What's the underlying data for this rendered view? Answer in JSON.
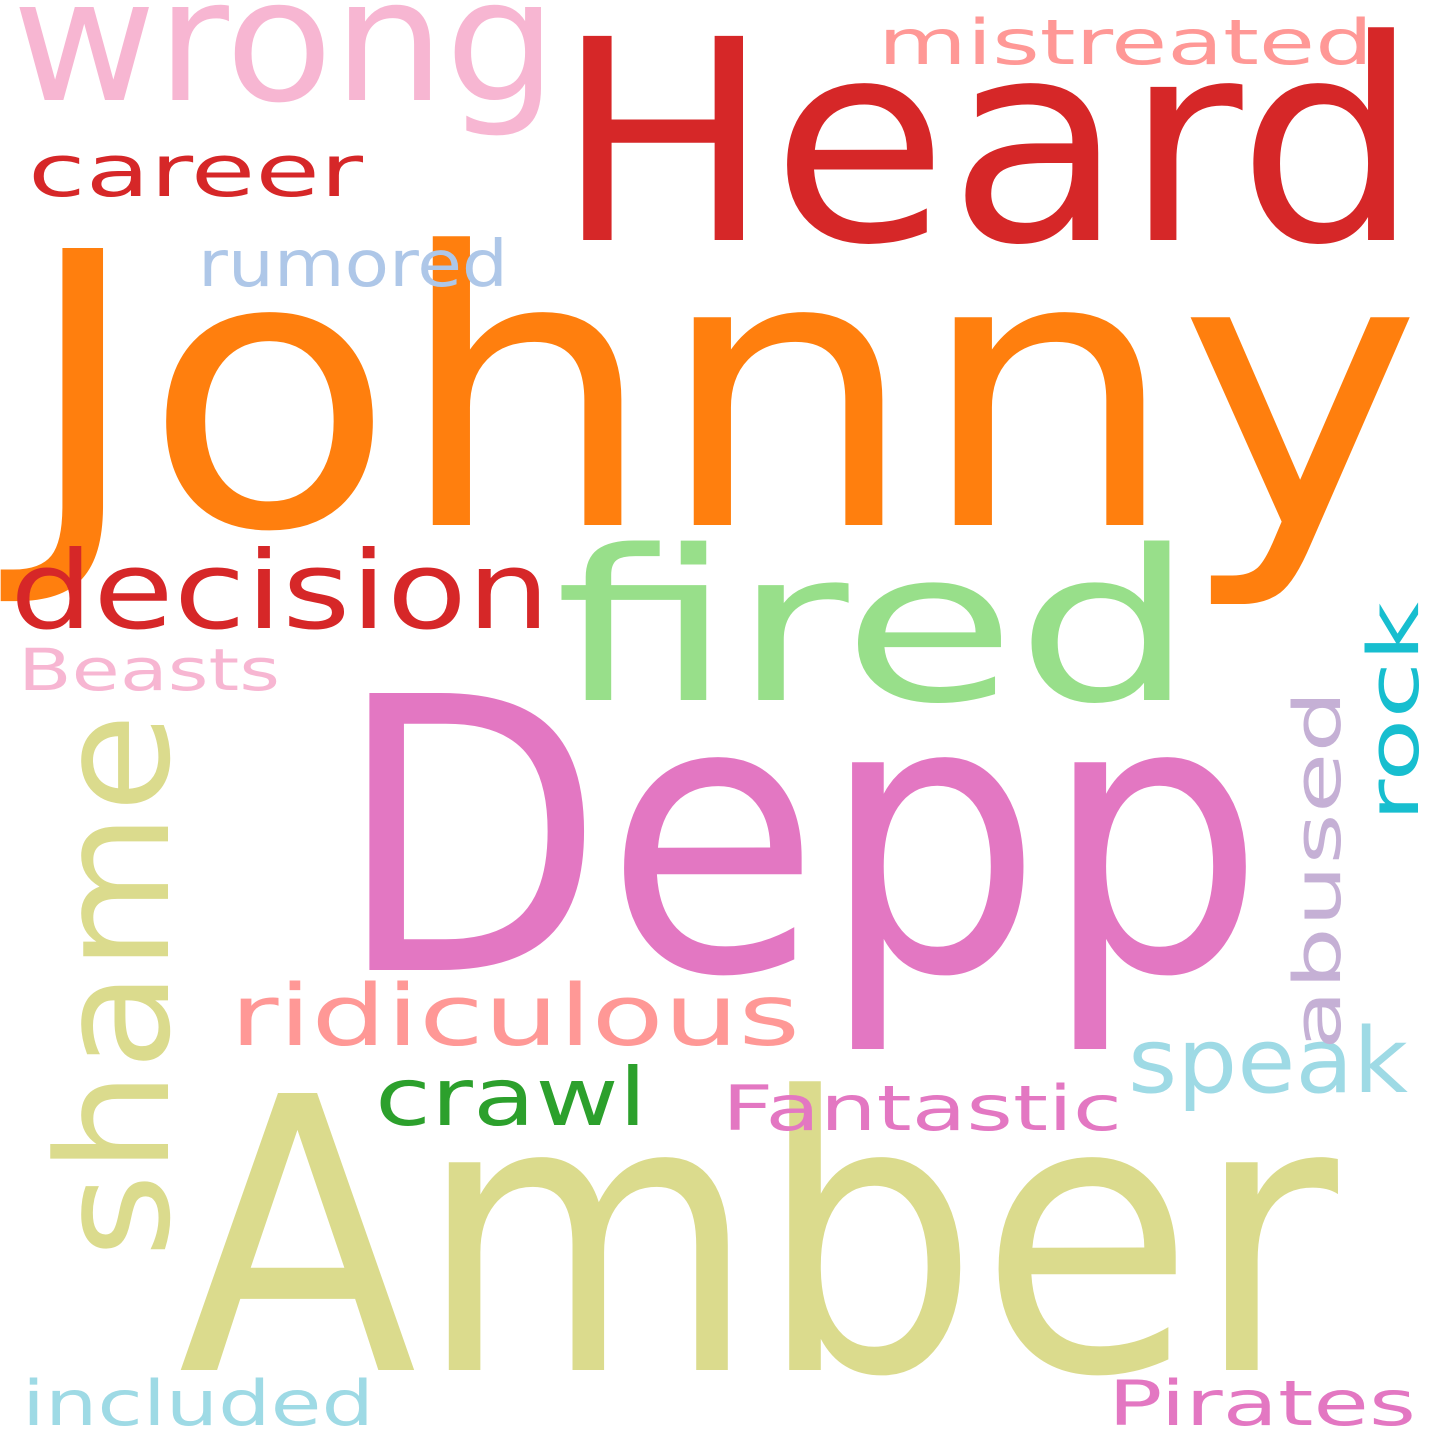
{
  "words": [
    {
      "text": "Johnny",
      "color": "#ff7f0e"
    },
    {
      "text": "Depp",
      "color": "#e377c2"
    },
    {
      "text": "Amber",
      "color": "#dbdb8d"
    },
    {
      "text": "Heard",
      "color": "#d62728"
    },
    {
      "text": "fired",
      "color": "#98df8a"
    },
    {
      "text": "shame",
      "color": "#dbdb8d"
    },
    {
      "text": "wrong",
      "color": "#f7b6d2"
    },
    {
      "text": "decision",
      "color": "#d62728"
    },
    {
      "text": "ridiculous",
      "color": "#ff9896"
    },
    {
      "text": "speak",
      "color": "#9edae5"
    },
    {
      "text": "crawl",
      "color": "#2ca02c"
    },
    {
      "text": "career",
      "color": "#d62728"
    },
    {
      "text": "mistreated",
      "color": "#ff9896"
    },
    {
      "text": "rumored",
      "color": "#aec7e8"
    },
    {
      "text": "Fantastic",
      "color": "#e377c2"
    },
    {
      "text": "abused",
      "color": "#c5b0d5"
    },
    {
      "text": "rock",
      "color": "#17becf"
    },
    {
      "text": "Beasts",
      "color": "#f7b6d2"
    },
    {
      "text": "included",
      "color": "#9edae5"
    },
    {
      "text": "Pirates",
      "color": "#e377c2"
    }
  ]
}
